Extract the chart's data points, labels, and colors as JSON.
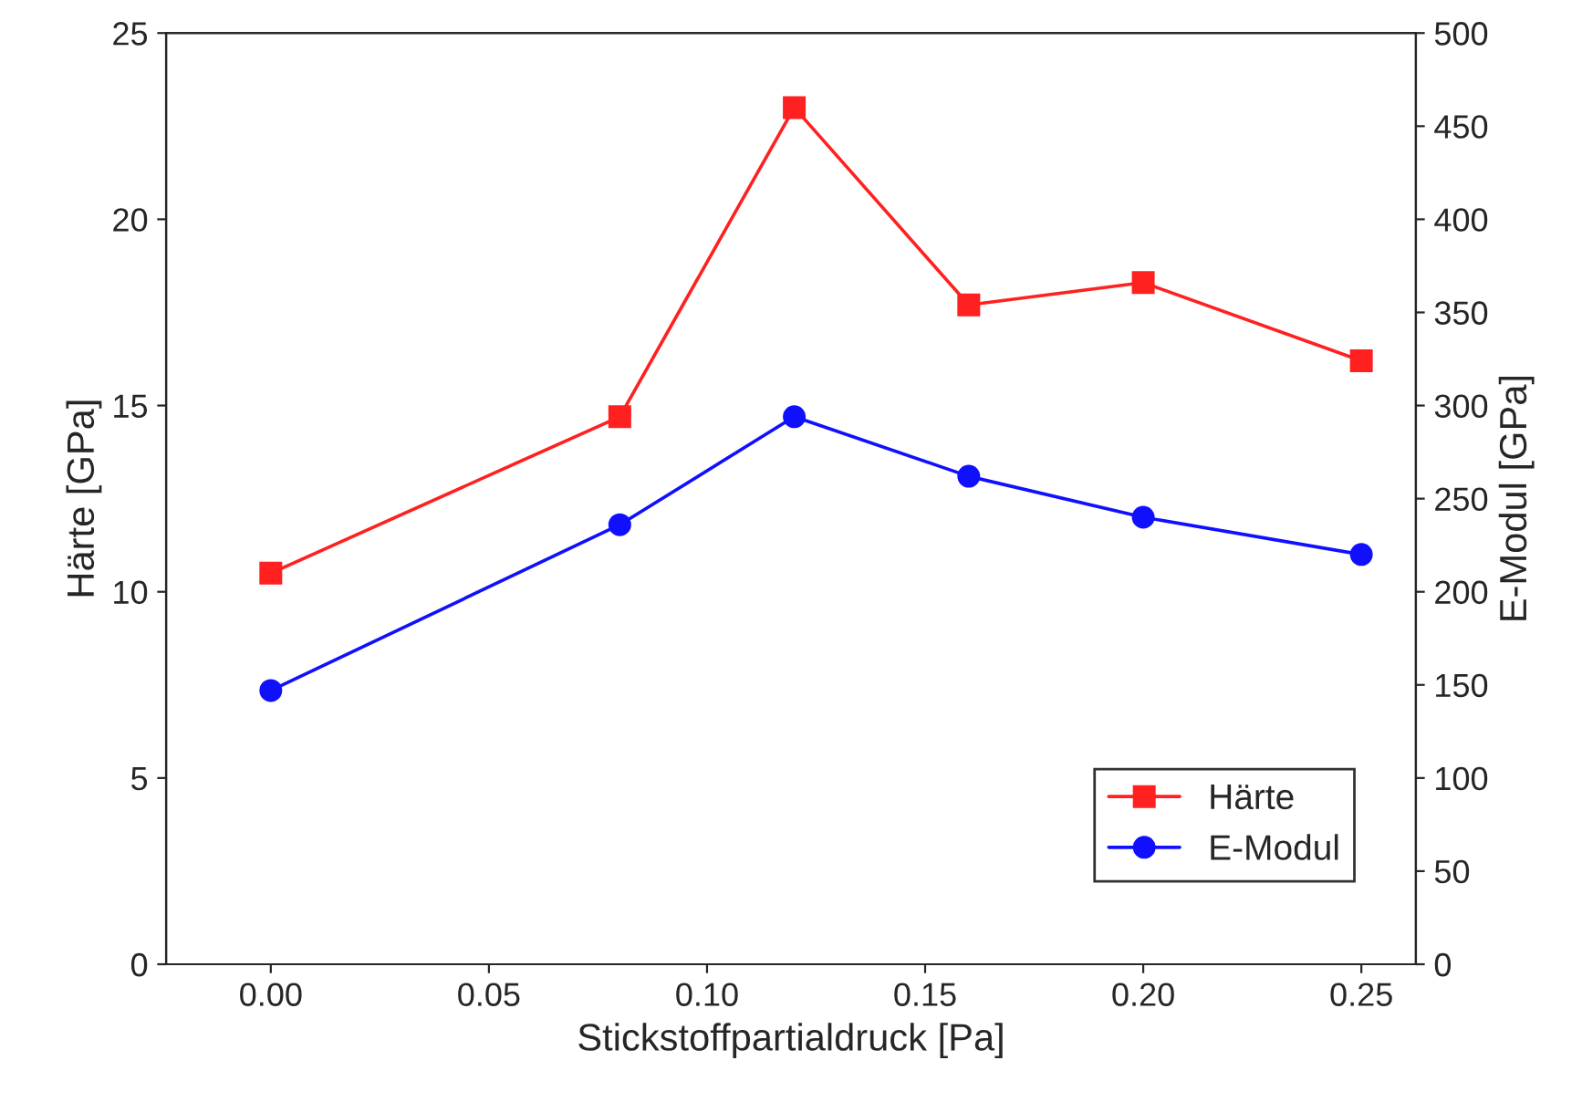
{
  "chart_data": {
    "type": "line",
    "xlabel": "Stickstoffpartialdruck [Pa]",
    "ylabel": "Härte [GPa]",
    "y2label": "E-Modul [GPa]",
    "x": [
      0.0,
      0.08,
      0.12,
      0.16,
      0.2,
      0.25
    ],
    "series": [
      {
        "name": "Härte",
        "color": "#ff2020",
        "marker": "square",
        "values": [
          10.5,
          14.7,
          23.0,
          17.7,
          18.3,
          16.2
        ]
      },
      {
        "name": "E-Modul",
        "color": "#1010ff",
        "marker": "circle",
        "axis": "y2",
        "values": [
          147,
          236,
          294,
          262,
          240,
          220
        ]
      }
    ],
    "xlim": [
      -0.024,
      0.2625
    ],
    "xticks": [
      {
        "value": 0.0,
        "label": "0.00"
      },
      0.05,
      {
        "value": 0.1,
        "label": "0.10"
      },
      0.15,
      {
        "value": 0.2,
        "label": "0.20"
      },
      0.25
    ],
    "ylim": [
      0,
      25
    ],
    "yticks": [
      0,
      5,
      10,
      15,
      20,
      25
    ],
    "y2lim": [
      0,
      500
    ],
    "y2ticks": [
      0,
      50,
      100,
      150,
      200,
      250,
      300,
      350,
      400,
      450,
      500
    ],
    "grid": false,
    "legend": "bottom right",
    "line_style": "solid"
  }
}
